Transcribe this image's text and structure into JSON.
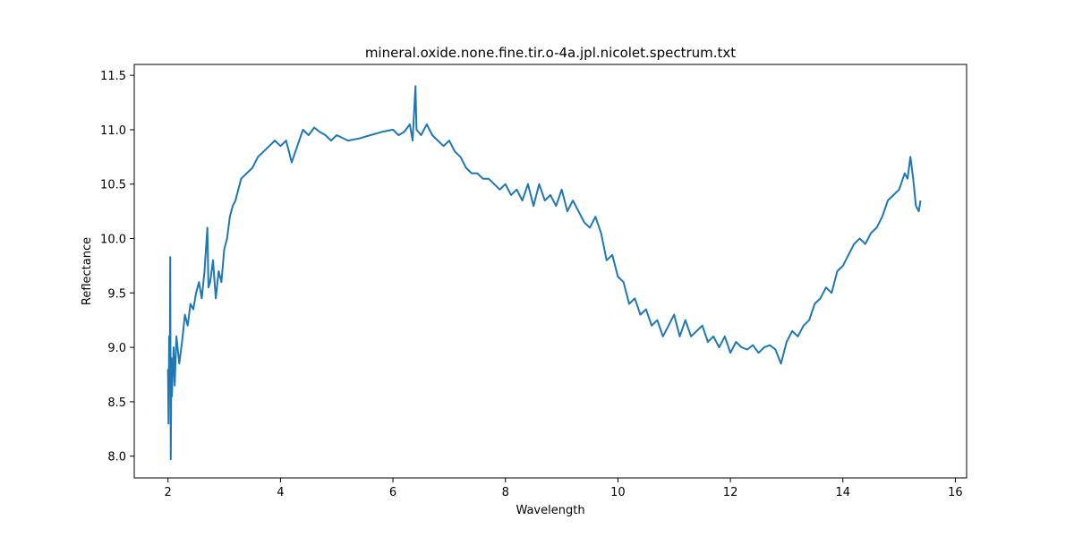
{
  "chart_data": {
    "type": "line",
    "title": "mineral.oxide.none.fine.tir.o-4a.jpl.nicolet.spectrum.txt",
    "xlabel": "Wavelength",
    "ylabel": "Reflectance",
    "xlim": [
      1.4,
      16.2
    ],
    "ylim": [
      7.8,
      11.6
    ],
    "xticks": [
      2,
      4,
      6,
      8,
      10,
      12,
      14,
      16
    ],
    "yticks": [
      8.0,
      8.5,
      9.0,
      9.5,
      10.0,
      10.5,
      11.0,
      11.5
    ],
    "ytick_labels": [
      "8.0",
      "8.5",
      "9.0",
      "9.5",
      "10.0",
      "10.5",
      "11.0",
      "11.5"
    ],
    "grid": false,
    "series": [
      {
        "color": "#1f77b4",
        "x": [
          2.0,
          2.01,
          2.02,
          2.03,
          2.04,
          2.05,
          2.06,
          2.07,
          2.08,
          2.1,
          2.12,
          2.15,
          2.2,
          2.25,
          2.3,
          2.35,
          2.4,
          2.45,
          2.5,
          2.55,
          2.6,
          2.65,
          2.7,
          2.72,
          2.75,
          2.8,
          2.85,
          2.9,
          2.95,
          3.0,
          3.05,
          3.1,
          3.15,
          3.2,
          3.3,
          3.4,
          3.5,
          3.6,
          3.7,
          3.8,
          3.9,
          4.0,
          4.1,
          4.2,
          4.3,
          4.4,
          4.5,
          4.6,
          4.7,
          4.8,
          4.9,
          5.0,
          5.2,
          5.4,
          5.6,
          5.8,
          6.0,
          6.1,
          6.2,
          6.3,
          6.35,
          6.4,
          6.42,
          6.5,
          6.6,
          6.7,
          6.8,
          6.9,
          7.0,
          7.1,
          7.2,
          7.3,
          7.4,
          7.5,
          7.6,
          7.7,
          7.8,
          7.9,
          8.0,
          8.1,
          8.2,
          8.3,
          8.4,
          8.5,
          8.6,
          8.7,
          8.8,
          8.9,
          9.0,
          9.1,
          9.2,
          9.3,
          9.4,
          9.5,
          9.6,
          9.7,
          9.8,
          9.9,
          10.0,
          10.1,
          10.2,
          10.3,
          10.4,
          10.5,
          10.6,
          10.7,
          10.8,
          10.9,
          11.0,
          11.1,
          11.2,
          11.3,
          11.4,
          11.5,
          11.6,
          11.7,
          11.8,
          11.9,
          12.0,
          12.1,
          12.2,
          12.3,
          12.4,
          12.5,
          12.6,
          12.7,
          12.8,
          12.9,
          13.0,
          13.1,
          13.2,
          13.3,
          13.4,
          13.5,
          13.6,
          13.7,
          13.8,
          13.9,
          14.0,
          14.1,
          14.2,
          14.3,
          14.4,
          14.5,
          14.6,
          14.7,
          14.8,
          14.9,
          15.0,
          15.1,
          15.15,
          15.2,
          15.25,
          15.3,
          15.35,
          15.38
        ],
        "y": [
          8.8,
          8.3,
          9.1,
          8.6,
          9.83,
          7.97,
          8.9,
          8.55,
          8.7,
          9.0,
          8.65,
          9.1,
          8.85,
          9.05,
          9.3,
          9.2,
          9.4,
          9.35,
          9.5,
          9.6,
          9.45,
          9.7,
          10.1,
          9.55,
          9.6,
          9.8,
          9.45,
          9.7,
          9.6,
          9.9,
          10.0,
          10.2,
          10.3,
          10.35,
          10.55,
          10.6,
          10.65,
          10.75,
          10.8,
          10.85,
          10.9,
          10.85,
          10.9,
          10.7,
          10.85,
          11.0,
          10.95,
          11.02,
          10.98,
          10.95,
          10.9,
          10.95,
          10.9,
          10.92,
          10.95,
          10.98,
          11.0,
          10.95,
          10.98,
          11.05,
          10.9,
          11.4,
          11.0,
          10.95,
          11.05,
          10.95,
          10.9,
          10.85,
          10.9,
          10.8,
          10.75,
          10.65,
          10.6,
          10.6,
          10.55,
          10.55,
          10.5,
          10.45,
          10.5,
          10.4,
          10.45,
          10.35,
          10.5,
          10.3,
          10.5,
          10.35,
          10.4,
          10.3,
          10.45,
          10.25,
          10.35,
          10.25,
          10.15,
          10.1,
          10.2,
          10.05,
          9.8,
          9.85,
          9.65,
          9.6,
          9.4,
          9.45,
          9.3,
          9.35,
          9.2,
          9.25,
          9.1,
          9.2,
          9.3,
          9.1,
          9.25,
          9.1,
          9.15,
          9.2,
          9.05,
          9.1,
          9.0,
          9.1,
          8.95,
          9.05,
          9.0,
          8.98,
          9.02,
          8.95,
          9.0,
          9.02,
          8.98,
          8.85,
          9.05,
          9.15,
          9.1,
          9.2,
          9.25,
          9.4,
          9.45,
          9.55,
          9.5,
          9.7,
          9.75,
          9.85,
          9.95,
          10.0,
          9.95,
          10.05,
          10.1,
          10.2,
          10.35,
          10.4,
          10.45,
          10.6,
          10.55,
          10.75,
          10.55,
          10.3,
          10.25,
          10.35
        ]
      }
    ]
  }
}
